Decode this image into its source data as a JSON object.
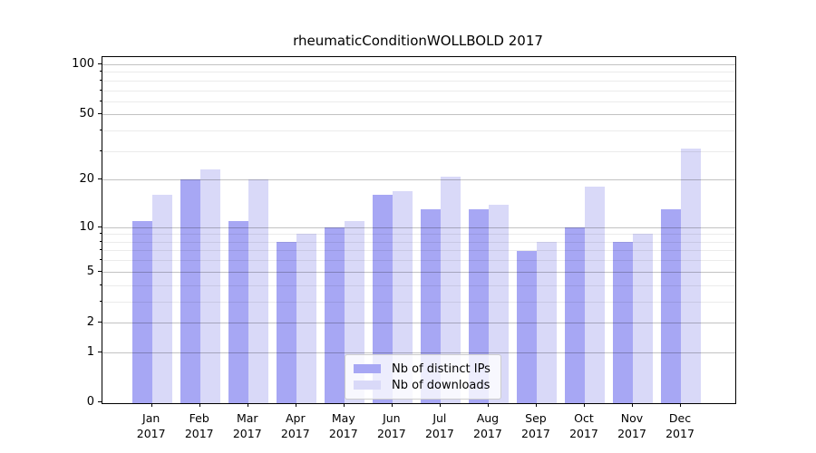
{
  "chart_data": {
    "type": "bar",
    "title": "rheumaticConditionWOLLBOLD 2017",
    "categories": [
      "Jan",
      "Feb",
      "Mar",
      "Apr",
      "May",
      "Jun",
      "Jul",
      "Aug",
      "Sep",
      "Oct",
      "Nov",
      "Dec"
    ],
    "category_year": "2017",
    "series": [
      {
        "name": "Nb of distinct IPs",
        "color": "#a7a7f4",
        "values": [
          11,
          20,
          11,
          8,
          10,
          16,
          13,
          13,
          7,
          10,
          8,
          13
        ]
      },
      {
        "name": "Nb of downloads",
        "color": "#d9d9f8",
        "values": [
          16,
          23,
          20,
          9,
          11,
          17,
          21,
          14,
          8,
          18,
          9,
          31
        ]
      }
    ],
    "yscale": "log1p",
    "ylim": [
      0,
      100
    ],
    "yticks_major": [
      0,
      1,
      2,
      5,
      10,
      20,
      50,
      100
    ],
    "yticks_minor": [
      3,
      4,
      6,
      7,
      8,
      9,
      30,
      40,
      60,
      70,
      80,
      90
    ],
    "grid": true,
    "legend_position": "lower center",
    "colors": {
      "major_grid": "rgba(0,0,0,0.24)",
      "minor_grid": "rgba(0,0,0,0.08)",
      "spine": "#000000",
      "text": "#000000"
    }
  }
}
